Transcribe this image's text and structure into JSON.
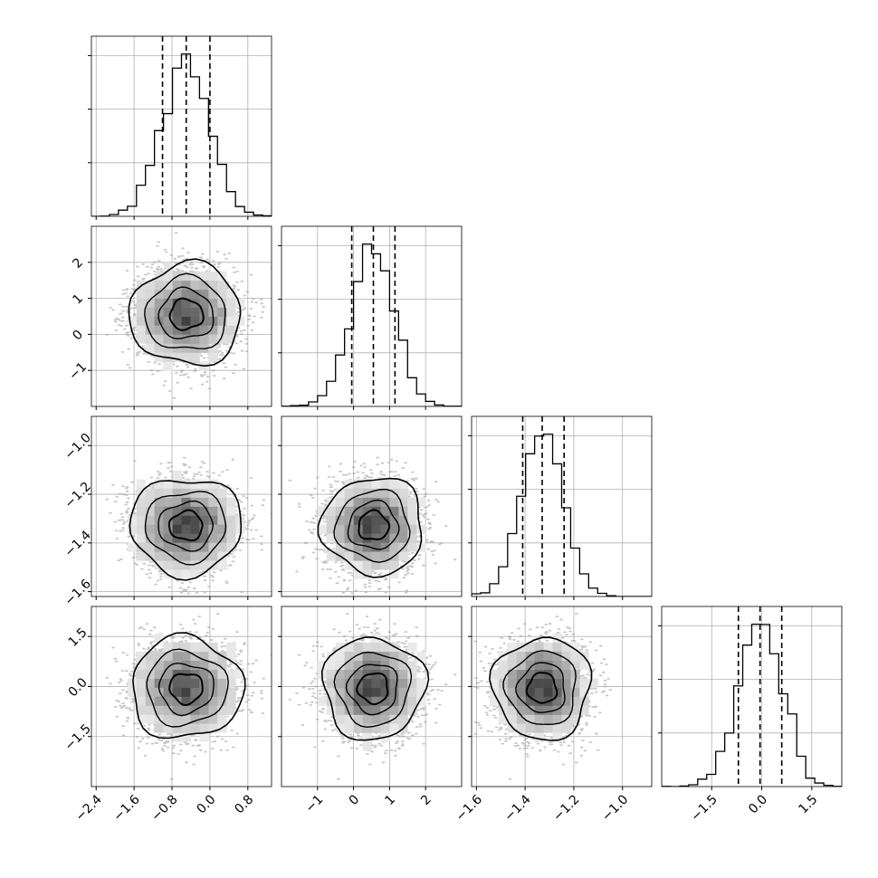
{
  "chart_data": {
    "type": "corner",
    "title": "",
    "parameters": [
      {
        "label": "",
        "range": [
          -2.5,
          1.3
        ],
        "ticks": [
          {
            "value": -2.4,
            "label": "−2.4"
          },
          {
            "value": -1.6,
            "label": "−1.6"
          },
          {
            "value": -0.8,
            "label": "−0.8"
          },
          {
            "value": 0.0,
            "label": "0.0"
          },
          {
            "value": 0.8,
            "label": "0.8"
          }
        ],
        "quantiles": [
          -1.0,
          -0.5,
          0.0
        ],
        "mean": -0.5,
        "sd": 0.5
      },
      {
        "label": "",
        "range": [
          -2.0,
          3.0
        ],
        "ticks": [
          {
            "value": -1,
            "label": "−1"
          },
          {
            "value": 0,
            "label": "0"
          },
          {
            "value": 1,
            "label": "1"
          },
          {
            "value": 2,
            "label": "2"
          }
        ],
        "quantiles": [
          -0.05,
          0.55,
          1.15
        ],
        "mean": 0.55,
        "sd": 0.6
      },
      {
        "label": "",
        "range": [
          -1.62,
          -0.88
        ],
        "ticks": [
          {
            "value": -1.6,
            "label": "−1.6"
          },
          {
            "value": -1.4,
            "label": "−1.4"
          },
          {
            "value": -1.2,
            "label": "−1.2"
          },
          {
            "value": -1.0,
            "label": "−1.0"
          }
        ],
        "quantiles": [
          -1.41,
          -1.33,
          -1.24
        ],
        "mean": -1.33,
        "sd": 0.085
      },
      {
        "label": "",
        "range": [
          -3.0,
          2.4
        ],
        "ticks": [
          {
            "value": -1.5,
            "label": "−1.5"
          },
          {
            "value": 0.0,
            "label": "0.0"
          },
          {
            "value": 1.5,
            "label": "1.5"
          }
        ],
        "quantiles": [
          -0.7,
          -0.05,
          0.6
        ],
        "mean": -0.05,
        "sd": 0.65
      }
    ],
    "histogram_bins": 20,
    "contour_levels": [
      0.393,
      0.865,
      0.989
    ],
    "grid": true,
    "quantile_lines": "dashed"
  }
}
